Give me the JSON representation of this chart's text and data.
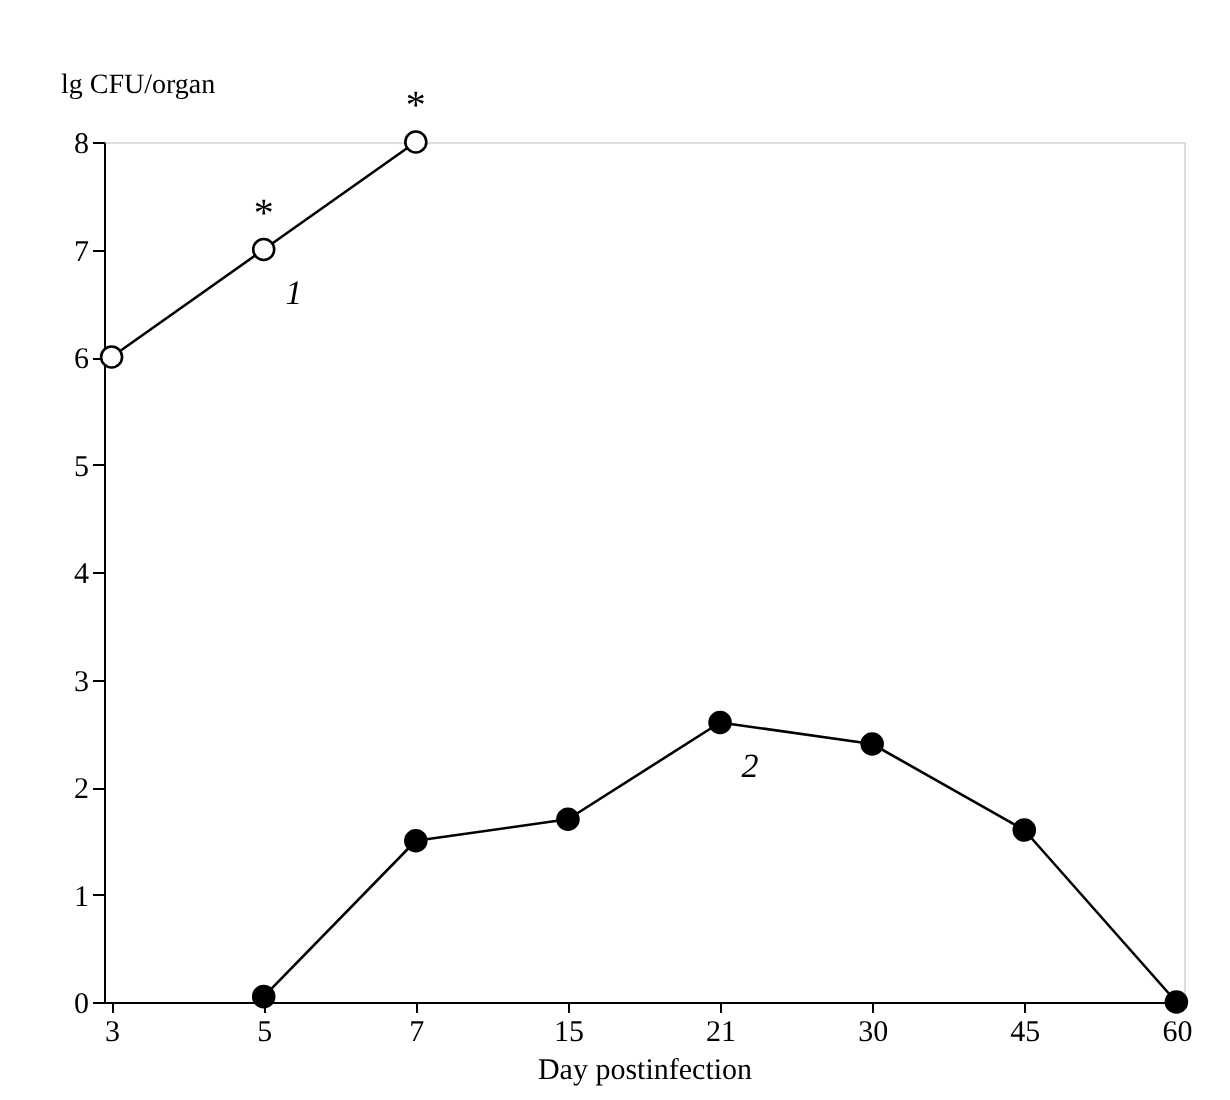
{
  "chart_data": {
    "type": "line",
    "xlabel": "Day postinfection",
    "ylabel": "lg CFU/organ",
    "categories": [
      "3",
      "5",
      "7",
      "15",
      "21",
      "30",
      "45",
      "60"
    ],
    "series": [
      {
        "name": "1",
        "color": "#ffffff",
        "values": [
          6,
          7,
          8,
          null,
          null,
          null,
          null,
          null
        ]
      },
      {
        "name": "2",
        "color": "#000000",
        "values": [
          null,
          0.05,
          1.5,
          1.7,
          2.6,
          2.4,
          1.6,
          0
        ]
      }
    ],
    "annotations": [
      {
        "text": "*",
        "x": "5",
        "y": 7
      },
      {
        "text": "*",
        "x": "7",
        "y": 8
      }
    ],
    "ylim": [
      0,
      8
    ],
    "yticks": [
      0,
      1,
      2,
      3,
      4,
      5,
      6,
      7,
      8
    ],
    "grid": false,
    "marker": "circle",
    "line_style": "solid"
  }
}
